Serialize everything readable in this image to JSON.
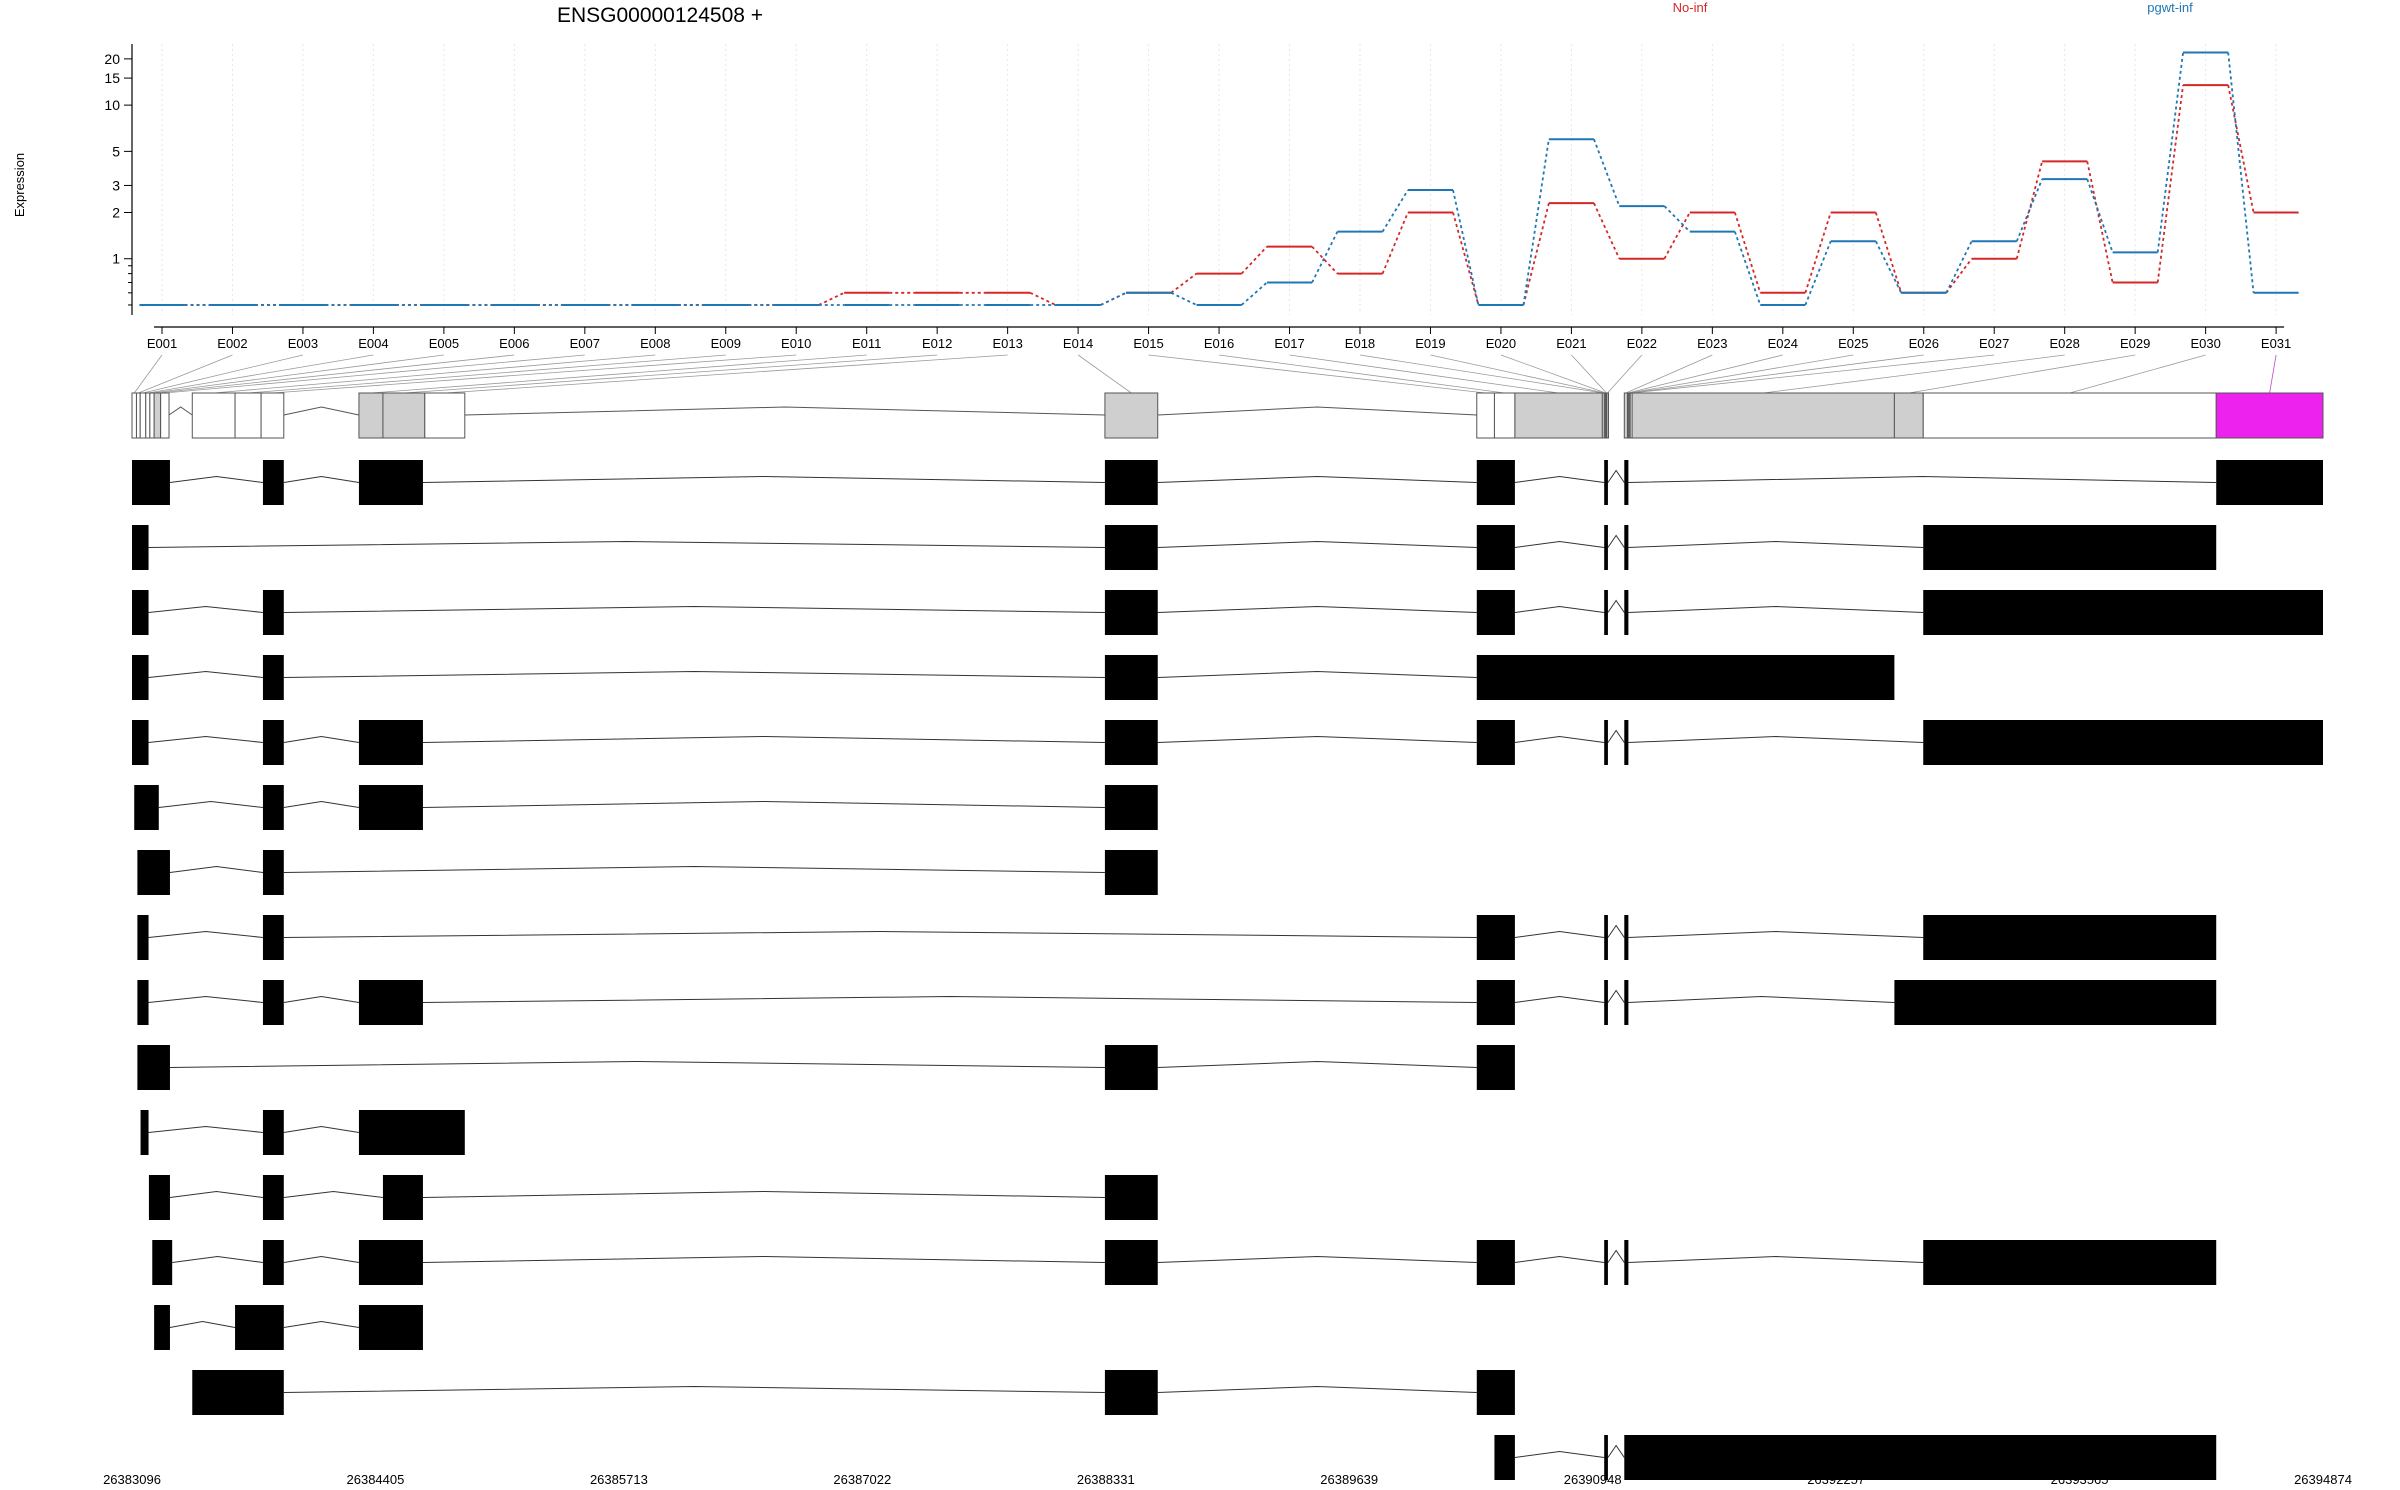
{
  "chart_data": [
    {
      "type": "line",
      "title": "ENSG00000124508 +",
      "xlabel": "",
      "ylabel": "Expression",
      "y_scale": "log",
      "y_ticks": [
        1,
        2,
        3,
        5,
        10,
        15,
        20
      ],
      "categories": [
        "E001",
        "E002",
        "E003",
        "E004",
        "E005",
        "E006",
        "E007",
        "E008",
        "E009",
        "E010",
        "E011",
        "E012",
        "E013",
        "E014",
        "E015",
        "E016",
        "E017",
        "E018",
        "E019",
        "E020",
        "E021",
        "E022",
        "E023",
        "E024",
        "E025",
        "E026",
        "E027",
        "E028",
        "E029",
        "E030",
        "E031"
      ],
      "grid": "vertical dotted lines at each exon bin",
      "legend_position": "top",
      "series": [
        {
          "name": "No-inf",
          "color": "#d62728",
          "values": [
            0.5,
            0.5,
            0.5,
            0.5,
            0.5,
            0.5,
            0.5,
            0.5,
            0.5,
            0.5,
            0.6,
            0.6,
            0.6,
            0.5,
            0.6,
            0.8,
            1.2,
            0.8,
            2.0,
            0.5,
            2.3,
            1.0,
            2.0,
            0.6,
            2.0,
            0.6,
            1.0,
            4.3,
            0.7,
            13.5,
            2.0
          ]
        },
        {
          "name": "pgwt-inf",
          "color": "#1f77b4",
          "values": [
            0.5,
            0.5,
            0.5,
            0.5,
            0.5,
            0.5,
            0.5,
            0.5,
            0.5,
            0.5,
            0.5,
            0.5,
            0.5,
            0.5,
            0.6,
            0.5,
            0.7,
            1.5,
            2.8,
            0.5,
            6.0,
            2.2,
            1.5,
            0.5,
            1.3,
            0.6,
            1.3,
            3.3,
            1.1,
            22.0,
            0.6
          ]
        }
      ]
    },
    {
      "type": "gene-model",
      "description_source": "exon bins and transcript structures",
      "x_ticks": [
        "26383096",
        "26384405",
        "26385713",
        "26387022",
        "26388331",
        "26389639",
        "26390948",
        "26392257",
        "26393565",
        "26394874"
      ],
      "x_range": [
        26383096,
        26394874
      ],
      "highlight_color": "#ee22ee",
      "bins": [
        {
          "id": "E001",
          "start": 26383096,
          "end": 26383120
        },
        {
          "id": "E002",
          "start": 26383120,
          "end": 26383140
        },
        {
          "id": "E003",
          "start": 26383140,
          "end": 26383170
        },
        {
          "id": "E004",
          "start": 26383170,
          "end": 26383192
        },
        {
          "id": "E005",
          "start": 26383192,
          "end": 26383215
        },
        {
          "id": "E006",
          "start": 26383215,
          "end": 26383250
        },
        {
          "id": "E007",
          "start": 26383250,
          "end": 26383295
        },
        {
          "id": "E008",
          "start": 26383420,
          "end": 26383650
        },
        {
          "id": "E009",
          "start": 26383650,
          "end": 26383790
        },
        {
          "id": "E010",
          "start": 26383790,
          "end": 26383912
        },
        {
          "id": "E011",
          "start": 26384316,
          "end": 26384445
        },
        {
          "id": "E012",
          "start": 26384445,
          "end": 26384670
        },
        {
          "id": "E013",
          "start": 26384670,
          "end": 26384885
        },
        {
          "id": "E014",
          "start": 26388326,
          "end": 26388610
        },
        {
          "id": "E015",
          "start": 26390325,
          "end": 26390420
        },
        {
          "id": "E016",
          "start": 26390420,
          "end": 26390530
        },
        {
          "id": "E017",
          "start": 26390530,
          "end": 26391000
        },
        {
          "id": "E018",
          "start": 26391000,
          "end": 26391010
        },
        {
          "id": "E019",
          "start": 26391010,
          "end": 26391015
        },
        {
          "id": "E020",
          "start": 26391015,
          "end": 26391020
        },
        {
          "id": "E021",
          "start": 26391020,
          "end": 26391025
        },
        {
          "id": "E022",
          "start": 26391025,
          "end": 26391030
        },
        {
          "id": "E023",
          "start": 26391118,
          "end": 26391135
        },
        {
          "id": "E024",
          "start": 26391135,
          "end": 26391140
        },
        {
          "id": "E025",
          "start": 26391140,
          "end": 26391145
        },
        {
          "id": "E026",
          "start": 26391145,
          "end": 26391150
        },
        {
          "id": "E027",
          "start": 26391150,
          "end": 26391160
        },
        {
          "id": "E028",
          "start": 26391160,
          "end": 26392570
        },
        {
          "id": "E029",
          "start": 26392570,
          "end": 26392725
        },
        {
          "id": "E030",
          "start": 26392725,
          "end": 26394300
        },
        {
          "id": "E031",
          "start": 26394300,
          "end": 26394874
        }
      ],
      "transcripts": [
        [
          [
            26383096,
            26383300
          ],
          [
            26383800,
            26383912
          ],
          [
            26384316,
            26384660
          ],
          [
            26388326,
            26388610
          ],
          [
            26390325,
            26390530
          ],
          [
            26391010,
            26391030
          ],
          [
            26391118,
            26391140
          ],
          [
            26394300,
            26394874
          ]
        ],
        [
          [
            26383096,
            26383185
          ],
          [
            26388326,
            26388610
          ],
          [
            26390325,
            26390530
          ],
          [
            26391010,
            26391030
          ],
          [
            26391118,
            26391140
          ],
          [
            26392725,
            26394300
          ]
        ],
        [
          [
            26383096,
            26383185
          ],
          [
            26383800,
            26383912
          ],
          [
            26388326,
            26388610
          ],
          [
            26390325,
            26390530
          ],
          [
            26391010,
            26391030
          ],
          [
            26391118,
            26391140
          ],
          [
            26392725,
            26394874
          ]
        ],
        [
          [
            26383096,
            26383185
          ],
          [
            26383800,
            26383912
          ],
          [
            26388326,
            26388610
          ],
          [
            26390325,
            26392570
          ]
        ],
        [
          [
            26383096,
            26383185
          ],
          [
            26383800,
            26383912
          ],
          [
            26384316,
            26384660
          ],
          [
            26388326,
            26388610
          ],
          [
            26390325,
            26390530
          ],
          [
            26391010,
            26391030
          ],
          [
            26391118,
            26391140
          ],
          [
            26392725,
            26394874
          ]
        ],
        [
          [
            26383108,
            26383240
          ],
          [
            26383800,
            26383912
          ],
          [
            26384316,
            26384660
          ],
          [
            26388326,
            26388610
          ]
        ],
        [
          [
            26383125,
            26383300
          ],
          [
            26383800,
            26383912
          ],
          [
            26388326,
            26388610
          ]
        ],
        [
          [
            26383125,
            26383185
          ],
          [
            26383800,
            26383912
          ],
          [
            26390325,
            26390530
          ],
          [
            26391010,
            26391030
          ],
          [
            26391118,
            26391140
          ],
          [
            26392725,
            26394300
          ]
        ],
        [
          [
            26383125,
            26383185
          ],
          [
            26383800,
            26383912
          ],
          [
            26384316,
            26384660
          ],
          [
            26390325,
            26390530
          ],
          [
            26391010,
            26391030
          ],
          [
            26391118,
            26391140
          ],
          [
            26392570,
            26394300
          ]
        ],
        [
          [
            26383125,
            26383300
          ],
          [
            26388326,
            26388610
          ],
          [
            26390325,
            26390530
          ]
        ],
        [
          [
            26383142,
            26383185
          ],
          [
            26383800,
            26383912
          ],
          [
            26384316,
            26384885
          ]
        ],
        [
          [
            26383187,
            26383300
          ],
          [
            26383800,
            26383912
          ],
          [
            26384445,
            26384660
          ],
          [
            26388326,
            26388610
          ]
        ],
        [
          [
            26383205,
            26383312
          ],
          [
            26383800,
            26383912
          ],
          [
            26384316,
            26384660
          ],
          [
            26388326,
            26388610
          ],
          [
            26390325,
            26390530
          ],
          [
            26391010,
            26391030
          ],
          [
            26391118,
            26391140
          ],
          [
            26392725,
            26394300
          ]
        ],
        [
          [
            26383215,
            26383300
          ],
          [
            26383650,
            26383912
          ],
          [
            26384316,
            26384660
          ]
        ],
        [
          [
            26383420,
            26383912
          ],
          [
            26388326,
            26388610
          ],
          [
            26390325,
            26390530
          ]
        ],
        [
          [
            26390420,
            26390530
          ],
          [
            26391010,
            26391030
          ],
          [
            26391118,
            26394300
          ]
        ]
      ]
    }
  ]
}
